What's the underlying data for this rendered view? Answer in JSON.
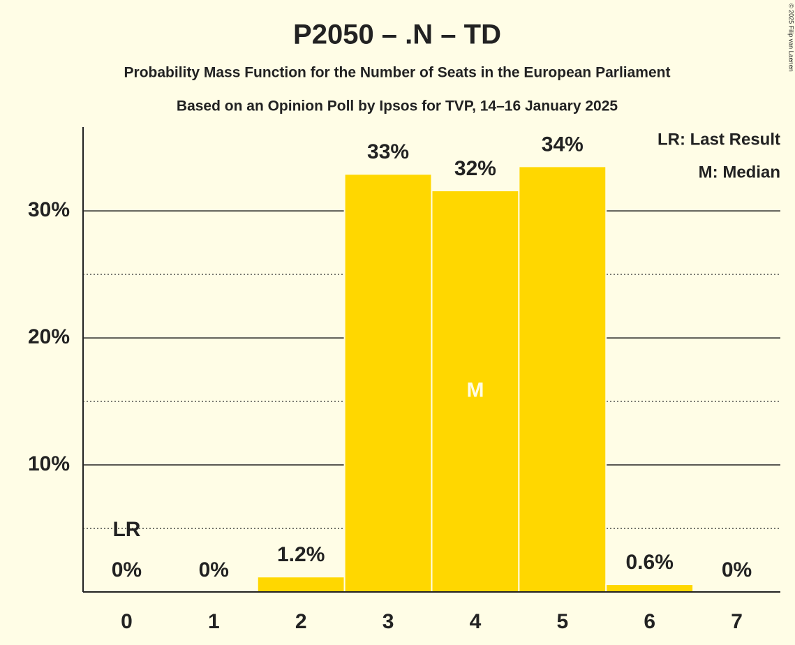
{
  "chart_data": {
    "type": "bar",
    "title": "P2050 – .N – TD",
    "subtitle": [
      "Probability Mass Function for the Number of Seats in the European Parliament",
      "Based on an Opinion Poll by Ipsos for TVP, 14–16 January 2025"
    ],
    "categories": [
      "0",
      "1",
      "2",
      "3",
      "4",
      "5",
      "6",
      "7"
    ],
    "values": [
      0,
      0,
      1.2,
      32.9,
      31.6,
      33.5,
      0.6,
      0
    ],
    "value_labels": [
      "0%",
      "0%",
      "1.2%",
      "33%",
      "32%",
      "34%",
      "0.6%",
      "0%"
    ],
    "color": "#ffd700",
    "ylim": [
      0,
      36.6
    ],
    "yticks": [
      {
        "value": 10,
        "label": "10%"
      },
      {
        "value": 20,
        "label": "20%"
      },
      {
        "value": 30,
        "label": "30%"
      }
    ],
    "minor_yticks": [
      5,
      15,
      25
    ],
    "grid": true,
    "annotations": [
      {
        "label": "LR",
        "category": "0"
      },
      {
        "label": "M",
        "category": "4"
      }
    ],
    "legend": [
      "LR: Last Result",
      "M: Median"
    ],
    "legend_position": "top-right",
    "copyright": "© 2025 Filip van Laenen"
  }
}
